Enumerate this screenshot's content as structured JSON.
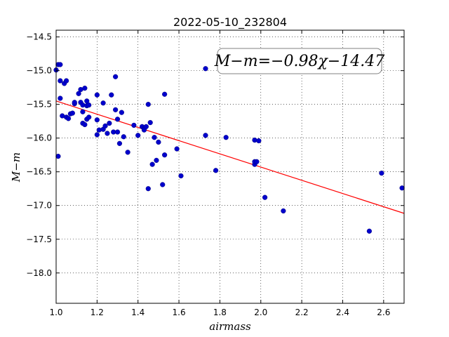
{
  "chart_data": {
    "type": "scatter",
    "title": "2022-05-10_232804",
    "xlabel": "airmass",
    "ylabel": "M−m",
    "xlim": [
      1.0,
      2.7
    ],
    "ylim": [
      -18.45,
      -14.4
    ],
    "y_inverted": true,
    "grid": true,
    "xticks": [
      1.0,
      1.2,
      1.4,
      1.6,
      1.8,
      2.0,
      2.2,
      2.4,
      2.6
    ],
    "xtick_labels": [
      "1.0",
      "1.2",
      "1.4",
      "1.6",
      "1.8",
      "2.0",
      "2.2",
      "2.4",
      "2.6"
    ],
    "yticks": [
      -14.5,
      -15.0,
      -15.5,
      -16.0,
      -16.5,
      -17.0,
      -17.5,
      -18.0
    ],
    "ytick_labels": [
      "−14.5",
      "−15.0",
      "−15.5",
      "−16.0",
      "−16.5",
      "−17.0",
      "−17.5",
      "−18.0"
    ],
    "annotation": "M−m=−0.98χ−14.47",
    "series": [
      {
        "type": "scatter",
        "color": "#0000cc",
        "x": [
          1.0,
          1.01,
          1.02,
          1.02,
          1.02,
          1.03,
          1.04,
          1.05,
          1.05,
          1.06,
          1.07,
          1.08,
          1.09,
          1.09,
          1.11,
          1.12,
          1.12,
          1.13,
          1.13,
          1.13,
          1.14,
          1.14,
          1.15,
          1.15,
          1.15,
          1.16,
          1.16,
          1.2,
          1.2,
          1.2,
          1.21,
          1.23,
          1.23,
          1.24,
          1.25,
          1.26,
          1.27,
          1.28,
          1.29,
          1.29,
          1.3,
          1.3,
          1.31,
          1.32,
          1.33,
          1.35,
          1.38,
          1.4,
          1.42,
          1.43,
          1.43,
          1.44,
          1.45,
          1.45,
          1.46,
          1.47,
          1.48,
          1.49,
          1.5,
          1.52,
          1.53,
          1.53,
          1.59,
          1.61,
          1.73,
          1.73,
          1.78,
          1.83,
          1.97,
          1.97,
          1.97,
          1.98,
          1.99,
          2.02,
          2.11,
          2.53,
          2.59,
          2.69,
          1.01
        ],
        "y": [
          -14.99,
          -14.91,
          -14.91,
          -15.15,
          -15.41,
          -15.67,
          -15.19,
          -15.15,
          -15.69,
          -15.71,
          -15.64,
          -15.63,
          -15.49,
          -15.47,
          -15.34,
          -15.28,
          -15.47,
          -15.61,
          -15.78,
          -15.51,
          -15.26,
          -15.8,
          -15.52,
          -15.72,
          -15.45,
          -15.51,
          -15.69,
          -15.36,
          -15.73,
          -15.95,
          -15.88,
          -15.87,
          -15.48,
          -15.82,
          -15.93,
          -15.78,
          -15.36,
          -15.91,
          -15.58,
          -15.09,
          -15.91,
          -15.72,
          -16.08,
          -15.62,
          -15.98,
          -16.21,
          -15.81,
          -15.96,
          -15.83,
          -15.86,
          -15.88,
          -15.83,
          -16.75,
          -15.5,
          -15.77,
          -16.39,
          -15.99,
          -16.33,
          -16.06,
          -16.69,
          -15.35,
          -16.25,
          -16.16,
          -16.56,
          -14.97,
          -15.96,
          -16.48,
          -15.99,
          -16.03,
          -16.39,
          -16.35,
          -16.35,
          -16.04,
          -16.88,
          -17.08,
          -17.38,
          -16.52,
          -16.74,
          -16.27
        ]
      },
      {
        "type": "line",
        "color": "#ff0000",
        "x": [
          1.0,
          2.7
        ],
        "y": [
          -15.45,
          -17.116
        ]
      }
    ]
  }
}
